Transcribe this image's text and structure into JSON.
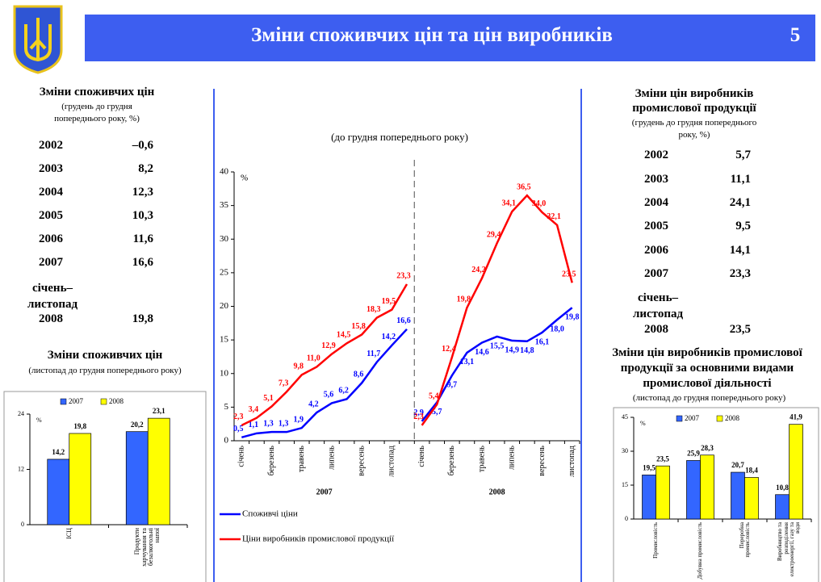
{
  "header": {
    "title": "Зміни споживчих цін та цін виробників",
    "page": "5"
  },
  "left_table": {
    "title": "Зміни споживчих цін",
    "subtitle": "(грудень до грудня попереднього року, %)",
    "rows": [
      [
        "2002",
        "–0,6"
      ],
      [
        "2003",
        "8,2"
      ],
      [
        "2004",
        "12,3"
      ],
      [
        "2005",
        "10,3"
      ],
      [
        "2006",
        "11,6"
      ],
      [
        "2007",
        "16,6"
      ],
      [
        "2008",
        "19,8"
      ]
    ],
    "period": "січень–листопад"
  },
  "right_table": {
    "title": "Зміни цін виробників промислової продукції",
    "subtitle": "(грудень до грудня попереднього року, %)",
    "rows": [
      [
        "2002",
        "5,7"
      ],
      [
        "2003",
        "11,1"
      ],
      [
        "2004",
        "24,1"
      ],
      [
        "2005",
        "9,5"
      ],
      [
        "2006",
        "14,1"
      ],
      [
        "2007",
        "23,3"
      ],
      [
        "2008",
        "23,5"
      ]
    ],
    "period": "січень–листопад"
  },
  "chart_data": [
    {
      "type": "bar",
      "title": "Зміни споживчих цін",
      "subtitle": "(листопад до грудня попереднього року)",
      "y_unit": "%",
      "categories": [
        "ІСЦ",
        "Продукти харчування та безалкогольні напої"
      ],
      "series": [
        {
          "name": "2007",
          "color": "#3366ff",
          "values": [
            14.2,
            20.2
          ],
          "value_labels": [
            "14,2",
            "20,2"
          ]
        },
        {
          "name": "2008",
          "color": "#ffff00",
          "values": [
            19.8,
            23.1
          ],
          "value_labels": [
            "19,8",
            "23,1"
          ]
        }
      ],
      "ylim": [
        0,
        24
      ],
      "yticks": [
        0,
        12,
        24
      ],
      "legend": "top"
    },
    {
      "type": "line",
      "subtitle": "(до грудня попереднього року)",
      "y_unit": "%",
      "groups": [
        {
          "label": "2007",
          "categories": [
            "січень",
            null,
            "березень",
            null,
            "травень",
            null,
            "липень",
            null,
            "вересень",
            null,
            "листопад",
            null
          ]
        },
        {
          "label": "2008",
          "categories": [
            "січень",
            null,
            "березень",
            null,
            "травень",
            null,
            "липень",
            null,
            "вересень",
            null,
            "листопад"
          ]
        }
      ],
      "series": [
        {
          "name": "Споживчі ціни",
          "color": "#0000ff",
          "values": [
            [
              0.5,
              1.1,
              1.3,
              1.3,
              1.9,
              4.2,
              5.6,
              6.2,
              8.6,
              11.7,
              14.2,
              16.6
            ],
            [
              2.9,
              5.7,
              9.7,
              13.1,
              14.6,
              15.5,
              14.9,
              14.8,
              16.1,
              18.0,
              19.8
            ]
          ],
          "value_labels": [
            [
              "0,5",
              "1,1",
              "1,3",
              "1,3",
              "1,9",
              "4,2",
              "5,6",
              "6,2",
              "8,6",
              "11,7",
              "14,2",
              "16,6"
            ],
            [
              "2,9",
              "5,7",
              "9,7",
              "13,1",
              "14,6",
              "15,5",
              "14,9",
              "14,8",
              "16,1",
              "18,0",
              "19,8"
            ]
          ]
        },
        {
          "name": "Ціни виробників промислової продукції",
          "color": "#ff0000",
          "values": [
            [
              2.3,
              3.4,
              5.1,
              7.3,
              9.8,
              11.0,
              12.9,
              14.5,
              15.8,
              18.3,
              19.5,
              23.3
            ],
            [
              2.3,
              5.4,
              12.4,
              19.8,
              24.2,
              29.4,
              34.1,
              36.5,
              34.0,
              32.1,
              23.5
            ]
          ],
          "value_labels": [
            [
              "2,3",
              "3,4",
              "5,1",
              "7,3",
              "9,8",
              "11,0",
              "12,9",
              "14,5",
              "15,8",
              "18,3",
              "19,5",
              "23,3"
            ],
            [
              "2,3",
              "5,4",
              "12,4",
              "19,8",
              "24,2",
              "29,4",
              "34,1",
              "36,5",
              "34,0",
              "32,1",
              "23,5"
            ]
          ]
        }
      ],
      "ylim": [
        0,
        40
      ],
      "yticks": [
        0,
        5,
        10,
        15,
        20,
        25,
        30,
        35,
        40
      ],
      "legend": "bottom"
    },
    {
      "type": "bar",
      "title": "Зміни цін виробників промислової продукції за основними видами промислової діяльності",
      "subtitle": "(листопад до грудня попереднього року)",
      "y_unit": "%",
      "categories": [
        "Промисловість",
        "Добувна промисловість",
        "Переробна промисловість",
        "Виробництво та розподілення електроенергії, газу та води"
      ],
      "series": [
        {
          "name": "2007",
          "color": "#3366ff",
          "values": [
            19.5,
            25.9,
            20.7,
            10.8
          ],
          "value_labels": [
            "19,5",
            "25,9",
            "20,7",
            "10,8"
          ]
        },
        {
          "name": "2008",
          "color": "#ffff00",
          "values": [
            23.5,
            28.3,
            18.4,
            41.9
          ],
          "value_labels": [
            "23,5",
            "28,3",
            "18,4",
            "41,9"
          ]
        }
      ],
      "ylim": [
        0,
        45
      ],
      "yticks": [
        0,
        15,
        30,
        45
      ],
      "legend": "top"
    }
  ]
}
